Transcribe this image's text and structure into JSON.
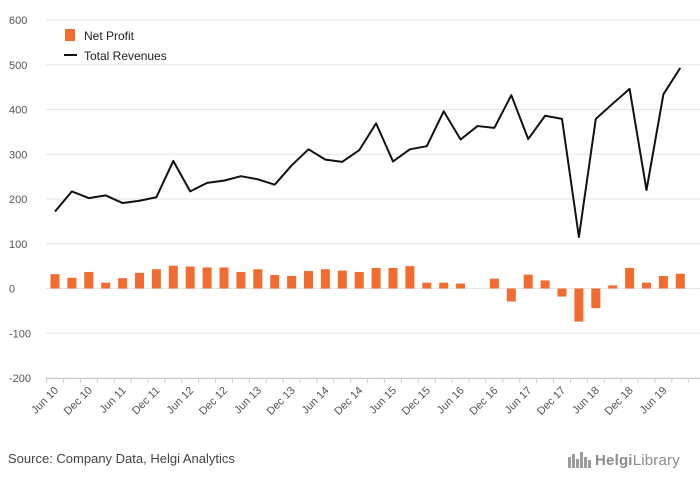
{
  "chart_data": {
    "type": "bar",
    "y_ticks": [
      600,
      500,
      400,
      300,
      200,
      100,
      0,
      -100,
      -200
    ],
    "ylim": [
      -200,
      600
    ],
    "grid": true,
    "legend_position": "top-left",
    "x_labels": [
      "Jun 10",
      "Dec 10",
      "Jun 11",
      "Dec 11",
      "Jun 12",
      "Dec 12",
      "Jun 13",
      "Dec 13",
      "Jun 14",
      "Dec 14",
      "Jun 15",
      "Dec 15",
      "Jun 16",
      "Dec 16",
      "Jun 17",
      "Dec 17",
      "Jun 18",
      "Dec 18",
      "Jun 19"
    ],
    "series": [
      {
        "name": "Net Profit",
        "type": "bar",
        "color": "#f26b2f",
        "values": [
          32,
          24,
          37,
          13,
          23,
          35,
          43,
          51,
          49,
          47,
          47,
          37,
          43,
          30,
          28,
          39,
          43,
          40,
          37,
          46,
          46,
          50,
          13,
          13,
          11,
          null,
          22,
          -29,
          31,
          18,
          -18,
          -74,
          -44,
          7,
          46,
          13,
          28,
          33
        ]
      },
      {
        "name": "Total Revenues",
        "type": "line",
        "color": "#111111",
        "values": [
          172,
          217,
          202,
          208,
          191,
          196,
          204,
          285,
          217,
          236,
          241,
          251,
          244,
          232,
          275,
          311,
          288,
          283,
          309,
          369,
          284,
          311,
          318,
          396,
          333,
          363,
          359,
          432,
          334,
          386,
          379,
          115,
          379,
          413,
          446,
          220,
          434,
          493
        ]
      }
    ]
  },
  "footer": {
    "source": "Source: Company Data, Helgi Analytics",
    "brand_prefix": "Helgi",
    "brand_suffix": "Library",
    "brand_icon": "helgi-castle-icon"
  }
}
